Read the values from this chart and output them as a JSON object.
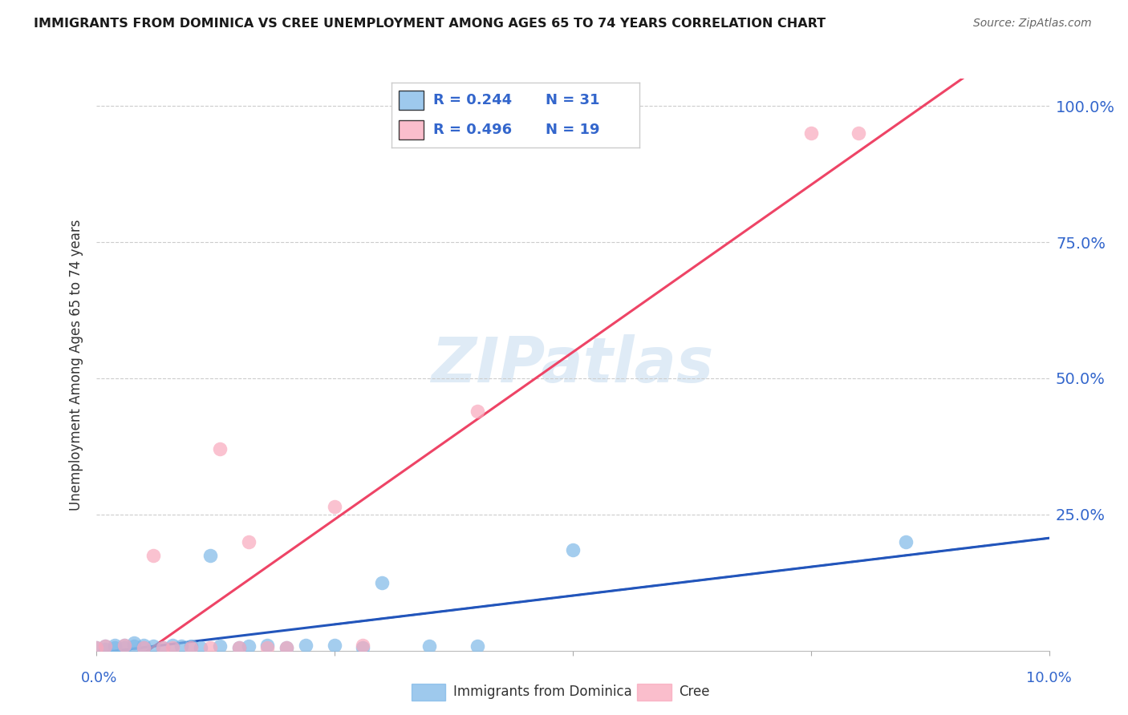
{
  "title": "IMMIGRANTS FROM DOMINICA VS CREE UNEMPLOYMENT AMONG AGES 65 TO 74 YEARS CORRELATION CHART",
  "source": "Source: ZipAtlas.com",
  "ylabel": "Unemployment Among Ages 65 to 74 years",
  "xmin": 0.0,
  "xmax": 0.1,
  "ymin": 0.0,
  "ymax": 1.05,
  "yticks": [
    0.0,
    0.25,
    0.5,
    0.75,
    1.0
  ],
  "ytick_labels": [
    "",
    "25.0%",
    "50.0%",
    "75.0%",
    "100.0%"
  ],
  "legend_blue_label": "Immigrants from Dominica",
  "legend_pink_label": "Cree",
  "blue_R": "R = 0.244",
  "blue_N": "N = 31",
  "pink_R": "R = 0.496",
  "pink_N": "N = 19",
  "blue_color": "#7EB8E8",
  "pink_color": "#F9A8BC",
  "blue_line_color": "#2255BB",
  "pink_line_color": "#EE4466",
  "blue_text_color": "#3366CC",
  "watermark_color": "#C5DCF0",
  "blue_scatter_x": [
    0.0,
    0.001,
    0.001,
    0.002,
    0.002,
    0.003,
    0.003,
    0.004,
    0.004,
    0.005,
    0.005,
    0.006,
    0.007,
    0.008,
    0.009,
    0.01,
    0.011,
    0.012,
    0.013,
    0.015,
    0.016,
    0.018,
    0.02,
    0.022,
    0.025,
    0.028,
    0.03,
    0.035,
    0.04,
    0.05,
    0.085
  ],
  "blue_scatter_y": [
    0.005,
    0.003,
    0.008,
    0.005,
    0.01,
    0.005,
    0.01,
    0.008,
    0.015,
    0.005,
    0.01,
    0.008,
    0.005,
    0.01,
    0.008,
    0.008,
    0.005,
    0.175,
    0.008,
    0.005,
    0.008,
    0.01,
    0.005,
    0.01,
    0.01,
    0.005,
    0.125,
    0.008,
    0.008,
    0.185,
    0.2
  ],
  "pink_scatter_x": [
    0.0,
    0.001,
    0.003,
    0.005,
    0.006,
    0.007,
    0.008,
    0.01,
    0.012,
    0.013,
    0.015,
    0.016,
    0.018,
    0.02,
    0.025,
    0.028,
    0.04,
    0.075,
    0.08
  ],
  "pink_scatter_y": [
    0.005,
    0.008,
    0.01,
    0.005,
    0.175,
    0.005,
    0.005,
    0.005,
    0.005,
    0.37,
    0.005,
    0.2,
    0.005,
    0.005,
    0.265,
    0.01,
    0.44,
    0.95,
    0.95
  ]
}
